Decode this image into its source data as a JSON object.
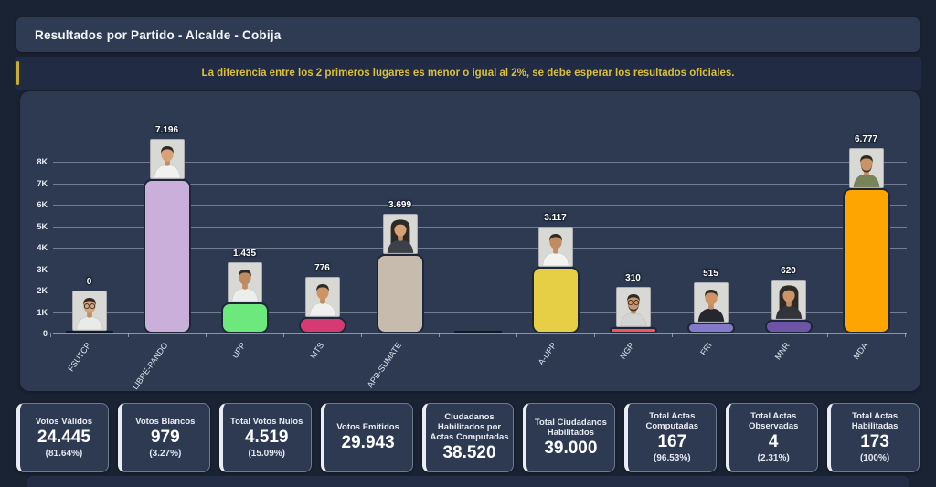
{
  "header": {
    "title": "Resultados por Partido - Alcalde - Cobija"
  },
  "warning": {
    "text": "La diferencia entre los 2 primeros lugares es menor o igual al 2%, se debe esperar los resultados oficiales."
  },
  "chart_data": {
    "type": "bar",
    "title": "Resultados por Partido - Alcalde - Cobija",
    "categories": [
      "FSUTCP",
      "LIBRE-PANDO",
      "UPP",
      "MTS",
      "APB-SUMATE",
      "",
      "A-UPP",
      "NGP",
      "FRI",
      "MNR",
      "MDA"
    ],
    "values": [
      0,
      7196,
      1435,
      776,
      3699,
      0,
      3117,
      310,
      515,
      620,
      6777
    ],
    "value_labels": [
      "0",
      "7.196",
      "1.435",
      "776",
      "3.699",
      "",
      "3.117",
      "310",
      "515",
      "620",
      "6.777"
    ],
    "bar_colors": [
      "#0e1726",
      "#c9afd9",
      "#6ce87d",
      "#d63a72",
      "#c6bbad",
      "#0e1726",
      "#e7cf45",
      "#f4555e",
      "#837ac8",
      "#6e54a6",
      "#ffa502"
    ],
    "photos": [
      {
        "hair": "short",
        "shirt": "#e9ebe9",
        "skin": "#d8a278",
        "glasses": true,
        "beard": false
      },
      {
        "hair": "short",
        "shirt": "#f1f2f0",
        "skin": "#d8a278",
        "glasses": false,
        "beard": false
      },
      {
        "hair": "short",
        "shirt": "#eceeec",
        "skin": "#c08b5e",
        "glasses": false,
        "beard": false
      },
      {
        "hair": "short",
        "shirt": "#f0f0ee",
        "skin": "#cd9468",
        "glasses": false,
        "beard": false
      },
      {
        "hair": "long",
        "shirt": "#3c4049",
        "skin": "#d8a278",
        "glasses": false,
        "beard": false
      },
      null,
      {
        "hair": "short",
        "shirt": "#f3f4f2",
        "skin": "#c08b5e",
        "glasses": false,
        "beard": false
      },
      {
        "hair": "short",
        "shirt": "#d3d5d2",
        "skin": "#cd9468",
        "glasses": true,
        "beard": true
      },
      {
        "hair": "short",
        "shirt": "#26272e",
        "skin": "#cd9468",
        "glasses": false,
        "beard": false
      },
      {
        "hair": "long",
        "shirt": "#32343c",
        "skin": "#cd9468",
        "glasses": false,
        "beard": false
      },
      {
        "hair": "short",
        "shirt": "#78835a",
        "skin": "#c99267",
        "glasses": false,
        "beard": true
      }
    ],
    "y_ticks": [
      "0",
      "1K",
      "2K",
      "3K",
      "4K",
      "5K",
      "6K",
      "7K",
      "8K"
    ],
    "ylim": [
      0,
      8000
    ],
    "grid": true,
    "legend": "none"
  },
  "stats_cards": [
    {
      "title": "Votos Válidos",
      "value": "24.445",
      "percent": "(81.64%)"
    },
    {
      "title": "Votos Blancos",
      "value": "979",
      "percent": "(3.27%)"
    },
    {
      "title": "Total Votos Nulos",
      "value": "4.519",
      "percent": "(15.09%)"
    },
    {
      "title": "Votos Emitidos",
      "value": "29.943",
      "percent": ""
    },
    {
      "title": "Ciudadanos Habilitados por Actas Computadas",
      "value": "38.520",
      "percent": ""
    },
    {
      "title": "Total Ciudadanos Habilitados",
      "value": "39.000",
      "percent": ""
    },
    {
      "title": "Total Actas Computadas",
      "value": "167",
      "percent": "(96.53%)"
    },
    {
      "title": "Total Actas Observadas",
      "value": "4",
      "percent": "(2.31%)"
    },
    {
      "title": "Total Actas Habilitadas",
      "value": "173",
      "percent": "(100%)"
    }
  ],
  "colors": {
    "background": "#1a2333",
    "panel": "#2d3a52",
    "warning_accent": "#c9ad2e",
    "warning_text": "#d9bf3c",
    "grid": "#c7d0de",
    "card_accent": "#e9eef5"
  }
}
